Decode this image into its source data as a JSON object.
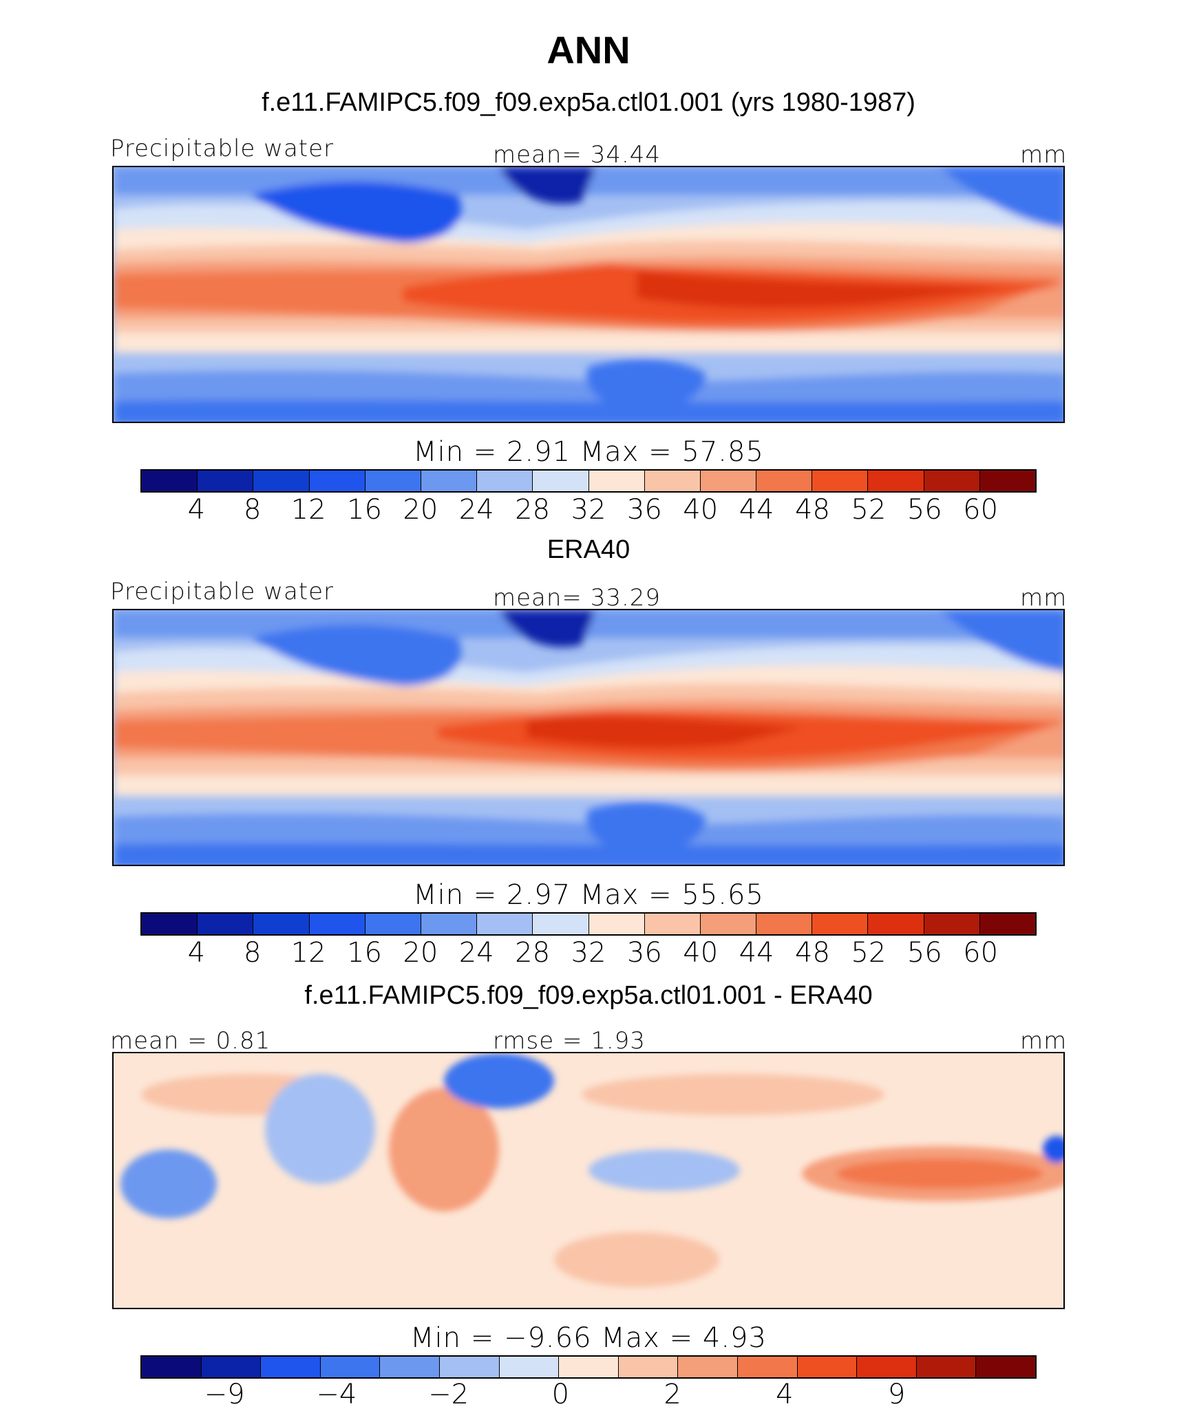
{
  "season": "ANN",
  "panels": [
    {
      "title": "f.e11.FAMIPC5.f09_f09.exp5a.ctl01.001 (yrs 1980-1987)",
      "left_label": "Precipitable water",
      "center_label": "mean=   34.44",
      "units": "mm",
      "min_max": "Min  =    2.91  Max  =   57.85",
      "colorbar_ticks": [
        "4",
        "8",
        "12",
        "16",
        "20",
        "24",
        "28",
        "32",
        "36",
        "40",
        "44",
        "48",
        "52",
        "56",
        "60"
      ]
    },
    {
      "title": "ERA40",
      "left_label": "Precipitable water",
      "center_label": "mean=   33.29",
      "units": "mm",
      "min_max": "Min  =    2.97  Max  =   55.65",
      "colorbar_ticks": [
        "4",
        "8",
        "12",
        "16",
        "20",
        "24",
        "28",
        "32",
        "36",
        "40",
        "44",
        "48",
        "52",
        "56",
        "60"
      ]
    },
    {
      "title": "f.e11.FAMIPC5.f09_f09.exp5a.ctl01.001 - ERA40",
      "left_label": "mean =    0.81",
      "center_label": "rmse =    1.93",
      "units": "mm",
      "min_max": "Min  =   −9.66  Max  =    4.93",
      "colorbar_ticks": [
        "−9",
        "−4",
        "−2",
        "0",
        "2",
        "4",
        "9"
      ]
    }
  ],
  "colors": {
    "abs_scale": [
      "#0a0a7a",
      "#0a23a8",
      "#0f3fd0",
      "#1f55ec",
      "#3d75ef",
      "#6d98f0",
      "#a4bff3",
      "#d4e2f8",
      "#fde6d6",
      "#f9c4a8",
      "#f59e7a",
      "#f2784b",
      "#ef5022",
      "#dc3010",
      "#b01a08",
      "#7d0405"
    ],
    "diff_scale": [
      "#0a0a7a",
      "#0a23a8",
      "#1f55ec",
      "#3d75ef",
      "#6d98f0",
      "#a4bff3",
      "#d4e2f8",
      "#fde6d6",
      "#f9c4a8",
      "#f59e7a",
      "#f2784b",
      "#ef5022",
      "#dc3010",
      "#b01a08",
      "#7d0405"
    ]
  }
}
